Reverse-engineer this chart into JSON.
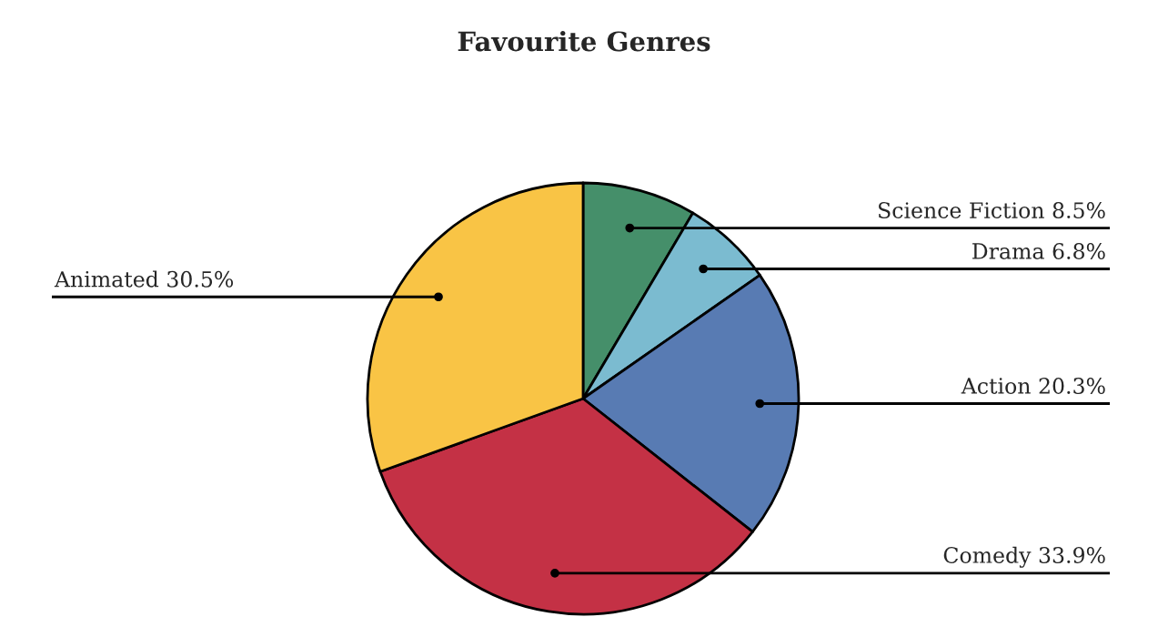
{
  "chart_data": {
    "type": "pie",
    "title": "Favourite Genres",
    "categories": [
      "Science Fiction",
      "Drama",
      "Action",
      "Comedy",
      "Animated"
    ],
    "values": [
      8.5,
      6.8,
      20.3,
      33.9,
      30.5
    ],
    "colors": [
      "#458f6a",
      "#7bbbd0",
      "#587bb3",
      "#c43145",
      "#f9c445"
    ],
    "value_labels": [
      "8.5%",
      "6.8%",
      "20.3%",
      "33.9%",
      "30.5%"
    ]
  }
}
